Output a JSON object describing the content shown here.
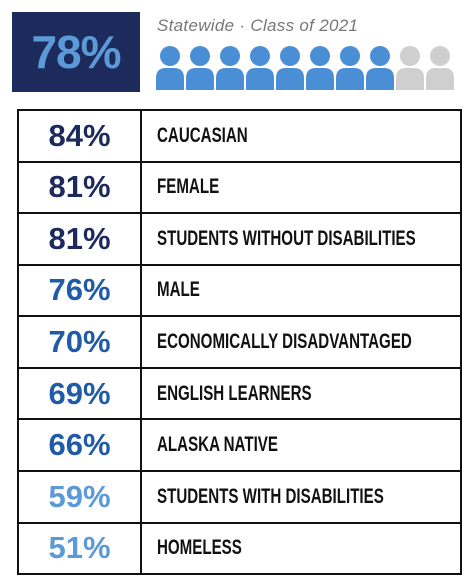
{
  "header": {
    "value": "78%",
    "subtitle": "Statewide · Class of 2021"
  },
  "table": {
    "rows": [
      {
        "value": "84%",
        "label": "CAUCASIAN",
        "color": "#1d2b5c"
      },
      {
        "value": "81%",
        "label": "FEMALE",
        "color": "#1d2b5c"
      },
      {
        "value": "81%",
        "label": "STUDENTS WITHOUT DISABILITIES",
        "color": "#1d2b5c"
      },
      {
        "value": "76%",
        "label": "MALE",
        "color": "#1f5ba6"
      },
      {
        "value": "70%",
        "label": "ECONOMICALLY DISADVANTAGED",
        "color": "#1f5ba6"
      },
      {
        "value": "69%",
        "label": "ENGLISH LEARNERS",
        "color": "#1f5ba6"
      },
      {
        "value": "66%",
        "label": "ALASKA NATIVE",
        "color": "#1f5ba6"
      },
      {
        "value": "59%",
        "label": "STUDENTS WITH DISABILITIES",
        "color": "#5b9ad6"
      },
      {
        "value": "51%",
        "label": "HOMELESS",
        "color": "#5b9ad6"
      }
    ]
  }
}
